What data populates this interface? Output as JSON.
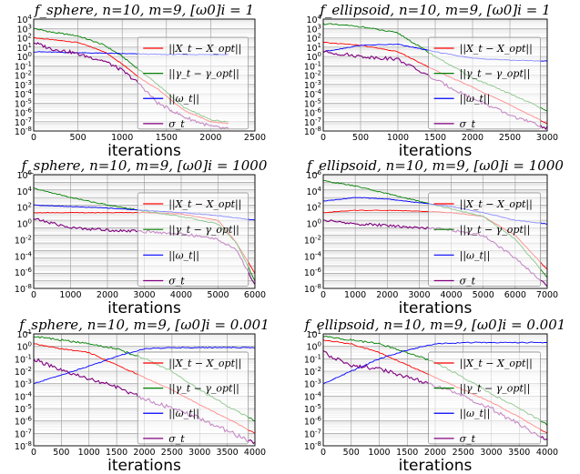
{
  "chart_data": [
    {
      "type": "line",
      "title": "f_sphere, n=10, m=9, [ω0]i = 1",
      "xlabel": "iterations",
      "xlim": [
        0,
        2500
      ],
      "ylim_exp": [
        -8,
        4
      ],
      "yscale": "log",
      "xticks": [
        "0",
        "500",
        "1000",
        "1500",
        "2000",
        "2500"
      ],
      "yticks": [
        "10^-8",
        "10^-7",
        "10^-6",
        "10^-5",
        "10^-4",
        "10^-3",
        "10^-2",
        "10^-1",
        "10^0",
        "10^1",
        "10^2",
        "10^3",
        "10^4"
      ],
      "legend": "right",
      "grid": true,
      "series": [
        {
          "name": "||X_t − X_opt||",
          "color": "#ff0000",
          "x": [
            0,
            200,
            500,
            800,
            1000,
            1200,
            1400,
            1700,
            2000,
            2200
          ],
          "logy": [
            2,
            1.8,
            1.5,
            0.5,
            -0.8,
            -2.3,
            -3.5,
            -5.8,
            -7.0,
            -7.2
          ]
        },
        {
          "name": "||γ_t − γ_opt||",
          "color": "#008000",
          "x": [
            0,
            200,
            500,
            800,
            1000,
            1200,
            1400,
            1700,
            2000,
            2200
          ],
          "logy": [
            3,
            2.6,
            2.2,
            1.2,
            0,
            -1.5,
            -3,
            -5.5,
            -6.8,
            -7.0
          ]
        },
        {
          "name": "||ω_t||",
          "color": "#0000ff",
          "x": [
            0,
            500,
            1000,
            1500,
            2000,
            2200
          ],
          "logy": [
            0.5,
            0.4,
            0.3,
            0.2,
            0.2,
            0.2
          ]
        },
        {
          "name": "σ_t",
          "color": "#800080",
          "x": [
            0,
            200,
            400,
            800,
            1000,
            1200,
            1400,
            1700,
            2000,
            2200
          ],
          "logy": [
            1.5,
            0.8,
            0.5,
            -0.5,
            -1.5,
            -3,
            -5,
            -6.5,
            -7.5,
            -7.8
          ]
        }
      ]
    },
    {
      "type": "line",
      "title": "f_ellipsoid, n=10, m=9, [ω0]i = 1",
      "xlabel": "iterations",
      "xlim": [
        0,
        3000
      ],
      "ylim_exp": [
        -8,
        4
      ],
      "yscale": "log",
      "xticks": [
        "0",
        "500",
        "1000",
        "1500",
        "2000",
        "2500",
        "3000"
      ],
      "yticks": [
        "10^-8",
        "10^-7",
        "10^-6",
        "10^-5",
        "10^-4",
        "10^-3",
        "10^-2",
        "10^-1",
        "10^0",
        "10^1",
        "10^2",
        "10^3",
        "10^4"
      ],
      "legend": "right",
      "grid": true,
      "series": [
        {
          "name": "||X_t − X_opt||",
          "color": "#ff0000",
          "x": [
            0,
            500,
            1000,
            1500,
            2000,
            2500,
            3000
          ],
          "logy": [
            1.5,
            1.2,
            0.5,
            -1.5,
            -3.3,
            -5.2,
            -7.2
          ]
        },
        {
          "name": "||γ_t − γ_opt||",
          "color": "#008000",
          "x": [
            0,
            500,
            1000,
            1500,
            2000,
            2500,
            3000
          ],
          "logy": [
            3.5,
            3.2,
            2.5,
            0,
            -2.3,
            -4,
            -5.8
          ]
        },
        {
          "name": "||ω_t||",
          "color": "#0000ff",
          "x": [
            0,
            500,
            1000,
            1500,
            2000,
            2500,
            3000
          ],
          "logy": [
            0.5,
            1.2,
            1.3,
            0.5,
            -0.2,
            -0.4,
            -0.5
          ]
        },
        {
          "name": "σ_t",
          "color": "#800080",
          "x": [
            0,
            500,
            1000,
            1500,
            2000,
            2500,
            3000
          ],
          "logy": [
            0.5,
            0,
            -0.3,
            -2.5,
            -4.5,
            -6.3,
            -7.7
          ]
        }
      ]
    },
    {
      "type": "line",
      "title": "f_sphere, n=10, m=9, [ω0]i = 1000",
      "xlabel": "iterations",
      "xlim": [
        0,
        6000
      ],
      "ylim_exp": [
        -8,
        7
      ],
      "yscale": "log",
      "xticks": [
        "0",
        "1000",
        "2000",
        "3000",
        "4000",
        "5000",
        "6000"
      ],
      "yticks": [
        "10^-8",
        "10^-6",
        "10^-4",
        "10^-2",
        "10^0",
        "10^2",
        "10^4",
        "10^6"
      ],
      "legend": "right",
      "grid": true,
      "series": [
        {
          "name": "||X_t − X_opt||",
          "color": "#ff0000",
          "x": [
            0,
            1000,
            2000,
            3000,
            4000,
            5000,
            5500,
            6000
          ],
          "logy": [
            2,
            2,
            2,
            2,
            1.8,
            1,
            -2,
            -6
          ]
        },
        {
          "name": "||γ_t − γ_opt||",
          "color": "#008000",
          "x": [
            0,
            1000,
            2000,
            3000,
            4000,
            5000,
            5500,
            6000
          ],
          "logy": [
            5.2,
            4,
            3,
            2.2,
            1.5,
            0.5,
            -2,
            -7
          ]
        },
        {
          "name": "||ω_t||",
          "color": "#0000ff",
          "x": [
            0,
            1000,
            2000,
            3000,
            4000,
            5000,
            6000
          ],
          "logy": [
            3,
            2.8,
            2.6,
            2.3,
            2,
            1.6,
            1
          ]
        },
        {
          "name": "σ_t",
          "color": "#800080",
          "x": [
            0,
            1000,
            2000,
            3000,
            4000,
            5000,
            5500,
            6000
          ],
          "logy": [
            1.2,
            0,
            -0.3,
            -0.5,
            -0.8,
            -1.5,
            -3,
            -7.5
          ]
        }
      ]
    },
    {
      "type": "line",
      "title": "f_ellipsoid, n=10, m=9, [ω0]i = 1000",
      "xlabel": "iterations",
      "xlim": [
        0,
        7000
      ],
      "ylim_exp": [
        -8,
        7
      ],
      "yscale": "log",
      "xticks": [
        "0",
        "1000",
        "2000",
        "3000",
        "4000",
        "5000",
        "6000",
        "7000"
      ],
      "yticks": [
        "10^-8",
        "10^-6",
        "10^-4",
        "10^-2",
        "10^0",
        "10^2",
        "10^4",
        "10^6"
      ],
      "legend": "right",
      "grid": true,
      "series": [
        {
          "name": "||X_t − X_opt||",
          "color": "#ff0000",
          "x": [
            0,
            1000,
            2000,
            3000,
            4000,
            5000,
            6000,
            7000
          ],
          "logy": [
            2,
            2.3,
            2.3,
            2.2,
            2,
            1.5,
            -1,
            -5.5
          ]
        },
        {
          "name": "||γ_t − γ_opt||",
          "color": "#008000",
          "x": [
            0,
            1000,
            2000,
            3000,
            4000,
            5000,
            6000,
            7000
          ],
          "logy": [
            6.2,
            5.5,
            4.5,
            3.5,
            2.5,
            1.5,
            -1.5,
            -6.5
          ]
        },
        {
          "name": "||ω_t||",
          "color": "#0000ff",
          "x": [
            0,
            1000,
            2000,
            3000,
            4000,
            5000,
            6000,
            7000
          ],
          "logy": [
            3.5,
            4,
            3.8,
            3.3,
            2.8,
            2,
            1,
            0.5
          ]
        },
        {
          "name": "σ_t",
          "color": "#800080",
          "x": [
            0,
            1000,
            2000,
            3000,
            4000,
            5000,
            6000,
            7000
          ],
          "logy": [
            1,
            0.5,
            0.3,
            0,
            -0.3,
            -1,
            -4,
            -7.7
          ]
        }
      ]
    },
    {
      "type": "line",
      "title": "f_sphere, n=10, m=9, [ω0]i = 0.001",
      "xlabel": "iterations",
      "xlim": [
        0,
        4000
      ],
      "ylim_exp": [
        -8,
        1
      ],
      "yscale": "log",
      "xticks": [
        "0",
        "500",
        "1000",
        "1500",
        "2000",
        "2500",
        "3000",
        "3500",
        "4000"
      ],
      "yticks": [
        "10^-8",
        "10^-7",
        "10^-6",
        "10^-5",
        "10^-4",
        "10^-3",
        "10^-2",
        "10^-1",
        "10^0",
        "10^1"
      ],
      "legend": "right",
      "grid": true,
      "series": [
        {
          "name": "||X_t − X_opt||",
          "color": "#ff0000",
          "x": [
            0,
            500,
            1000,
            1500,
            2000,
            2500,
            3000,
            3500,
            4000
          ],
          "logy": [
            0.2,
            -0.2,
            -0.5,
            -1.5,
            -2.5,
            -3.5,
            -4.7,
            -5.8,
            -7
          ]
        },
        {
          "name": "||γ_t − γ_opt||",
          "color": "#008000",
          "x": [
            0,
            500,
            1000,
            1500,
            2000,
            2500,
            3000,
            3500,
            4000
          ],
          "logy": [
            0.8,
            0.5,
            0.2,
            -0.2,
            -1,
            -2,
            -3.5,
            -4.8,
            -6
          ]
        },
        {
          "name": "||ω_t||",
          "color": "#0000ff",
          "x": [
            0,
            500,
            1000,
            1500,
            2000,
            2500,
            3000,
            3500,
            4000
          ],
          "logy": [
            -3,
            -2.3,
            -1.6,
            -0.8,
            -0.2,
            -0.1,
            -0.1,
            -0.1,
            -0.1
          ]
        },
        {
          "name": "σ_t",
          "color": "#800080",
          "x": [
            0,
            500,
            1000,
            1500,
            2000,
            2500,
            3000,
            3500,
            4000
          ],
          "logy": [
            -1,
            -2,
            -2.6,
            -3.3,
            -4.2,
            -5,
            -5.8,
            -6.8,
            -7.8
          ]
        }
      ]
    },
    {
      "type": "line",
      "title": "f_ellipsoid, n=10, m=9, [ω0]i = 0.001",
      "xlabel": "iterations",
      "xlim": [
        0,
        4000
      ],
      "ylim_exp": [
        -8,
        1
      ],
      "yscale": "log",
      "xticks": [
        "0",
        "500",
        "1000",
        "1500",
        "2000",
        "2500",
        "3000",
        "3500",
        "4000"
      ],
      "yticks": [
        "10^-8",
        "10^-7",
        "10^-6",
        "10^-5",
        "10^-4",
        "10^-3",
        "10^-2",
        "10^-1",
        "10^0",
        "10^1"
      ],
      "legend": "right",
      "grid": true,
      "series": [
        {
          "name": "||X_t − X_opt||",
          "color": "#ff0000",
          "x": [
            0,
            500,
            1000,
            1500,
            2000,
            2500,
            3000,
            3500,
            4000
          ],
          "logy": [
            0.5,
            0.2,
            -0.5,
            -1.5,
            -2.5,
            -3.5,
            -4.5,
            -5.7,
            -7
          ]
        },
        {
          "name": "||γ_t − γ_opt||",
          "color": "#008000",
          "x": [
            0,
            500,
            1000,
            1500,
            2000,
            2500,
            3000,
            3500,
            4000
          ],
          "logy": [
            0.8,
            0.5,
            0.2,
            -0.5,
            -1.3,
            -2.5,
            -3.8,
            -5,
            -6.3
          ]
        },
        {
          "name": "||ω_t||",
          "color": "#0000ff",
          "x": [
            0,
            500,
            1000,
            1500,
            2000,
            2500,
            3000,
            3500,
            4000
          ],
          "logy": [
            -3,
            -2,
            -1,
            -0.3,
            0.2,
            0.3,
            0.3,
            0.3,
            0.3
          ]
        },
        {
          "name": "σ_t",
          "color": "#800080",
          "x": [
            0,
            500,
            1000,
            1500,
            2000,
            2500,
            3000,
            3500,
            4000
          ],
          "logy": [
            -0.5,
            -1.5,
            -1.8,
            -2.5,
            -3.2,
            -4,
            -5,
            -6.3,
            -7.6
          ]
        }
      ]
    }
  ]
}
